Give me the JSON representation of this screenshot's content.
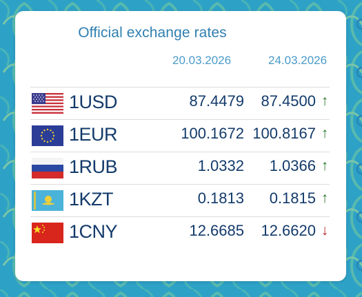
{
  "title": "Official exchange rates",
  "dates": [
    "20.03.2026",
    "24.03.2026"
  ],
  "colors": {
    "title": "#2f7fb1",
    "date": "#4a9ac9",
    "text": "#123a6a",
    "up": "#2e7a2e",
    "down": "#b32222"
  },
  "rates": [
    {
      "code": "1USD",
      "flag": "usa-flag-icon",
      "rate_1": "87.4479",
      "rate_2": "87.4500",
      "trend": "↑",
      "direction": "up"
    },
    {
      "code": "1EUR",
      "flag": "eu-flag-icon",
      "rate_1": "100.1672",
      "rate_2": "100.8167",
      "trend": "↑",
      "direction": "up"
    },
    {
      "code": "1RUB",
      "flag": "russia-flag-icon",
      "rate_1": "1.0332",
      "rate_2": "1.0366",
      "trend": "↑",
      "direction": "up"
    },
    {
      "code": "1KZT",
      "flag": "kazakhstan-flag-icon",
      "rate_1": "0.1813",
      "rate_2": "0.1815",
      "trend": "↑",
      "direction": "up"
    },
    {
      "code": "1CNY",
      "flag": "china-flag-icon",
      "rate_1": "12.6685",
      "rate_2": "12.6620",
      "trend": "↓",
      "direction": "down"
    }
  ]
}
